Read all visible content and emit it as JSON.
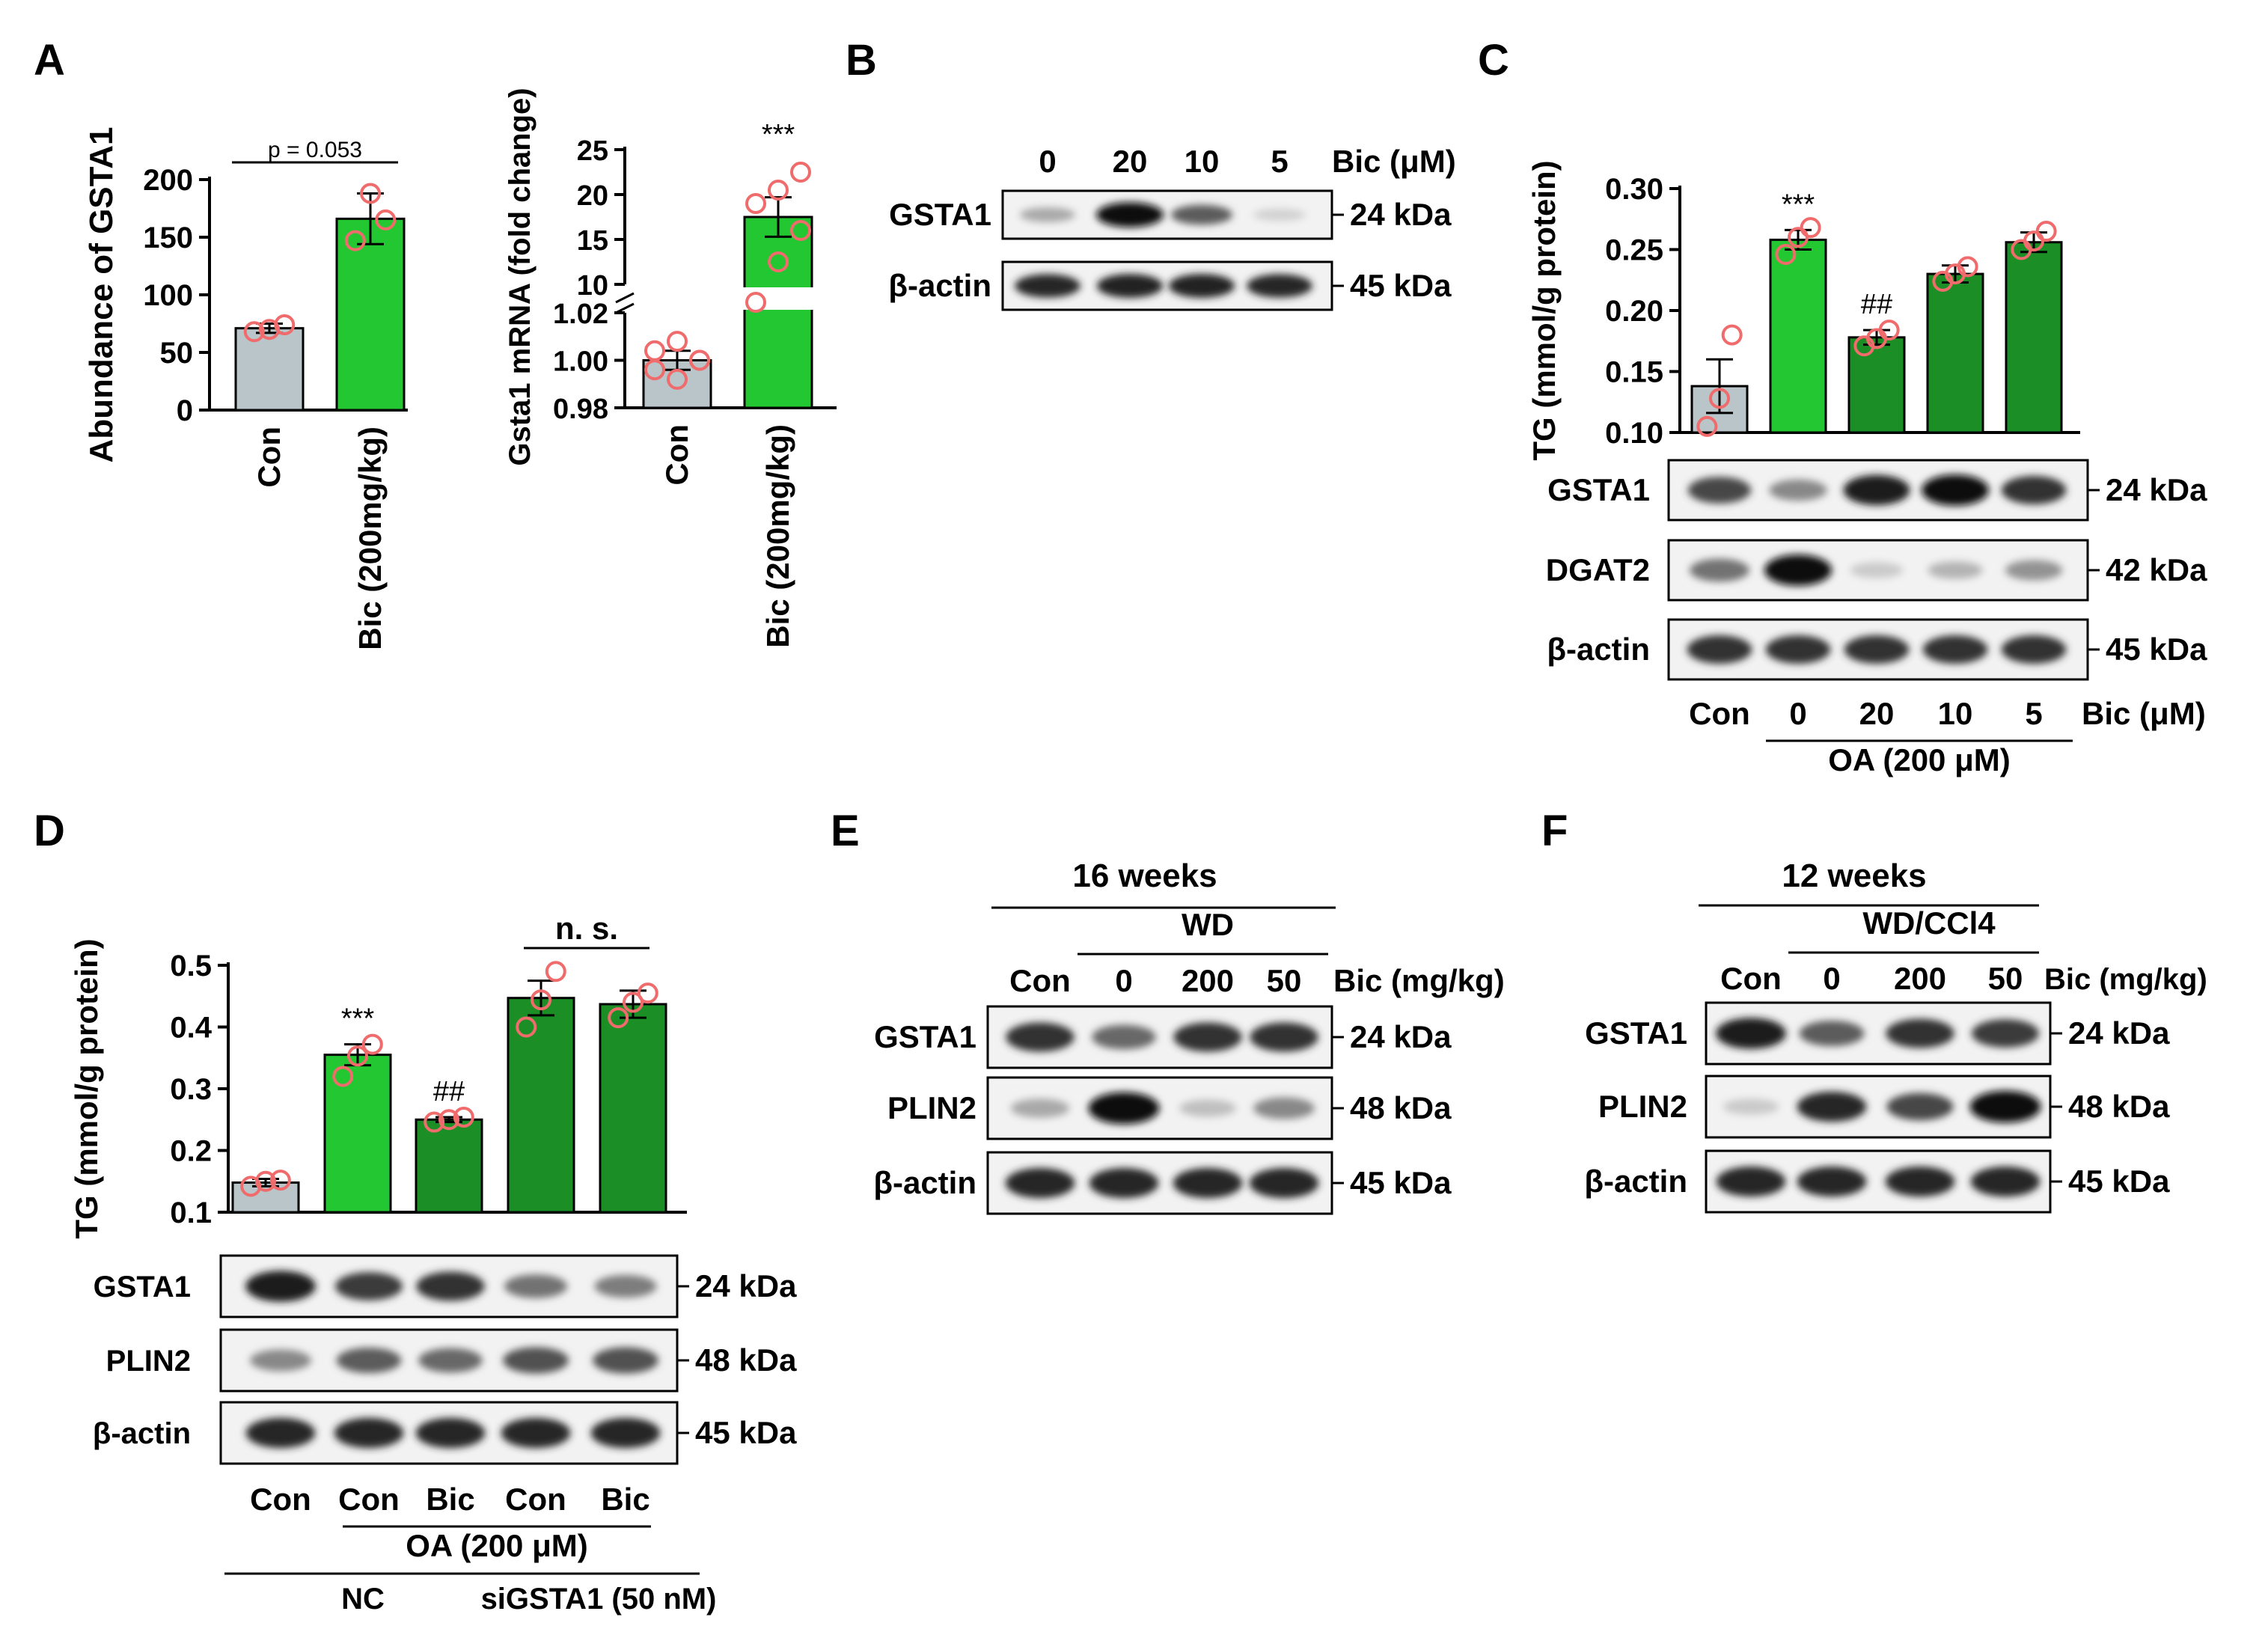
{
  "panel_labels": [
    "A",
    "B",
    "C",
    "D",
    "E",
    "F"
  ],
  "colors": {
    "con": "#b9c5c8",
    "oa_light": "#22c731",
    "oa_dark": "#1b8f26",
    "point": "#f06c6c"
  },
  "chart_data": [
    {
      "panel": "A",
      "type": "bar",
      "ylabel": "Abundance of GSTA1",
      "ylim": [
        0,
        200
      ],
      "yticks": [
        "0",
        "50",
        "100",
        "150",
        "200"
      ],
      "categories": [
        "Con",
        "Bic (200mg/kg)"
      ],
      "values": [
        71,
        166
      ],
      "errors": [
        4,
        22
      ],
      "points": [
        [
          68,
          70,
          74
        ],
        [
          147,
          188,
          165
        ]
      ],
      "annotation": "p = 0.053"
    },
    {
      "panel": "A",
      "type": "bar",
      "ylabel": "Gsta1 mRNA (fold change)",
      "yticks_lower": [
        "0.98",
        "1.00",
        "1.02"
      ],
      "yticks_upper": [
        "10",
        "15",
        "20",
        "25"
      ],
      "categories": [
        "Con",
        "Bic (200mg/kg)"
      ],
      "values": [
        1.0,
        17.5
      ],
      "errors": [
        0.004,
        2.2
      ],
      "points": [
        [
          0.996,
          0.992,
          1.0,
          1.004,
          1.008,
          1.0
        ],
        [
          8.0,
          12.5,
          16.0,
          19.0,
          20.5,
          22.5
        ]
      ],
      "annotation": "***"
    },
    {
      "panel": "C",
      "type": "bar",
      "ylabel": "TG (mmol/g protein)",
      "ylim": [
        0.1,
        0.3
      ],
      "yticks": [
        "0.10",
        "0.15",
        "0.20",
        "0.25",
        "0.30"
      ],
      "categories": [
        "Con",
        "0",
        "20",
        "10",
        "5"
      ],
      "values": [
        0.138,
        0.258,
        0.178,
        0.23,
        0.256
      ],
      "errors": [
        0.022,
        0.008,
        0.006,
        0.007,
        0.008
      ],
      "points": [
        [
          0.105,
          0.128,
          0.18
        ],
        [
          0.246,
          0.26,
          0.268
        ],
        [
          0.171,
          0.177,
          0.184
        ],
        [
          0.224,
          0.23,
          0.236
        ],
        [
          0.25,
          0.257,
          0.265
        ]
      ],
      "annotations": [
        "",
        "***",
        "##",
        "",
        ""
      ]
    },
    {
      "panel": "D",
      "type": "bar",
      "ylabel": "TG (mmol/g protein)",
      "ylim": [
        0.1,
        0.5
      ],
      "yticks": [
        "0.1",
        "0.2",
        "0.3",
        "0.4",
        "0.5"
      ],
      "categories": [
        "Con",
        "Con",
        "Bic",
        "Con",
        "Bic"
      ],
      "values": [
        0.148,
        0.355,
        0.25,
        0.447,
        0.437
      ],
      "errors": [
        0.006,
        0.017,
        0.004,
        0.028,
        0.022
      ],
      "points": [
        [
          0.142,
          0.15,
          0.152
        ],
        [
          0.32,
          0.353,
          0.372
        ],
        [
          0.246,
          0.25,
          0.254
        ],
        [
          0.4,
          0.444,
          0.49
        ],
        [
          0.415,
          0.44,
          0.455
        ]
      ],
      "annotations": [
        "",
        "***",
        "##",
        "",
        ""
      ],
      "bracket_label": "n. s."
    }
  ],
  "blots": {
    "B": {
      "lanes": [
        "0",
        "20",
        "10",
        "5"
      ],
      "treatment": "Bic (μM)",
      "rows": [
        {
          "name": "GSTA1",
          "size": "24 kDa",
          "intensity": [
            0.3,
            1.0,
            0.65,
            0.12
          ]
        },
        {
          "name": "β-actin",
          "size": "45 kDa",
          "intensity": [
            0.9,
            0.92,
            0.92,
            0.9
          ]
        }
      ]
    },
    "C": {
      "lanes": [
        "Con",
        "0",
        "20",
        "10",
        "5"
      ],
      "treatment": "Bic (μM)",
      "group": "OA (200 μM)",
      "rows": [
        {
          "name": "GSTA1",
          "size": "24 kDa",
          "intensity": [
            0.75,
            0.45,
            0.95,
            1.0,
            0.85
          ]
        },
        {
          "name": "DGAT2",
          "size": "42 kDa",
          "intensity": [
            0.55,
            1.0,
            0.15,
            0.25,
            0.4
          ]
        },
        {
          "name": "β-actin",
          "size": "45 kDa",
          "intensity": [
            0.85,
            0.85,
            0.85,
            0.85,
            0.85
          ]
        }
      ]
    },
    "D": {
      "lanes": [
        "Con",
        "Con",
        "Bic",
        "Con",
        "Bic"
      ],
      "group": "OA (200 μM)",
      "subgroups": [
        "NC",
        "siGSTA1 (50 nM)"
      ],
      "rows": [
        {
          "name": "GSTA1",
          "size": "24 kDa",
          "intensity": [
            0.95,
            0.8,
            0.85,
            0.55,
            0.5
          ]
        },
        {
          "name": "PLIN2",
          "size": "48 kDa",
          "intensity": [
            0.45,
            0.65,
            0.6,
            0.7,
            0.7
          ]
        },
        {
          "name": "β-actin",
          "size": "45 kDa",
          "intensity": [
            0.9,
            0.9,
            0.9,
            0.9,
            0.9
          ]
        }
      ]
    },
    "E": {
      "title": "16 weeks",
      "group": "WD",
      "lanes": [
        "Con",
        "0",
        "200",
        "50"
      ],
      "treatment": "Bic (mg/kg)",
      "rows": [
        {
          "name": "GSTA1",
          "size": "24 kDa",
          "intensity": [
            0.85,
            0.6,
            0.85,
            0.85
          ]
        },
        {
          "name": "PLIN2",
          "size": "48 kDa",
          "intensity": [
            0.3,
            1.0,
            0.2,
            0.45
          ]
        },
        {
          "name": "β-actin",
          "size": "45 kDa",
          "intensity": [
            0.9,
            0.9,
            0.9,
            0.9
          ]
        }
      ]
    },
    "F": {
      "title": "12 weeks",
      "group": "WD/CCl4",
      "lanes": [
        "Con",
        "0",
        "200",
        "50"
      ],
      "treatment": "Bic (mg/kg)",
      "rows": [
        {
          "name": "GSTA1",
          "size": "24 kDa",
          "intensity": [
            0.95,
            0.65,
            0.85,
            0.8
          ]
        },
        {
          "name": "PLIN2",
          "size": "48 kDa",
          "intensity": [
            0.15,
            0.9,
            0.75,
            1.0
          ]
        },
        {
          "name": "β-actin",
          "size": "45 kDa",
          "intensity": [
            0.9,
            0.9,
            0.9,
            0.9
          ]
        }
      ]
    }
  }
}
